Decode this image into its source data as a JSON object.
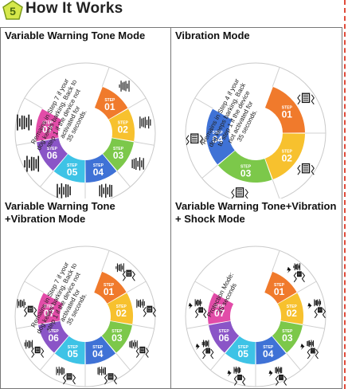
{
  "header": {
    "title": "How It Works",
    "logo_text": "5"
  },
  "colors": {
    "step1": "#f07a2c",
    "step2": "#f7c12e",
    "step3": "#7cc84a",
    "step4": "#3f72d6",
    "step5": "#3ec3e6",
    "step6": "#8a55c7",
    "step7": "#e24ca8"
  },
  "panels": [
    {
      "title": "Variable Warning Tone Mode",
      "note": [
        "Remains in Step 7 if your",
        "dog keeps barking. Back to",
        "step 1 if the device not",
        "activated for",
        "35 seconds."
      ],
      "steps": [
        {
          "label": "STEP",
          "num": "01"
        },
        {
          "label": "STEP",
          "num": "02"
        },
        {
          "label": "STEP",
          "num": "03"
        },
        {
          "label": "STEP",
          "num": "04"
        },
        {
          "label": "STEP",
          "num": "05"
        },
        {
          "label": "STEP",
          "num": "06"
        },
        {
          "label": "STEP",
          "num": "07"
        }
      ]
    },
    {
      "title": "Vibration Mode",
      "note": [
        "Remains in Step 4 if your",
        "dog keeps barking. Back",
        "to step 1 if the device",
        "not activated for",
        "35 seconds."
      ],
      "steps": [
        {
          "label": "STEP",
          "num": "01"
        },
        {
          "label": "STEP",
          "num": "02"
        },
        {
          "label": "STEP",
          "num": "03"
        },
        {
          "label": "STEP",
          "num": "04"
        }
      ]
    },
    {
      "title": "Variable Warning Tone\n+Vibration Mode",
      "note": [
        "Remains in Step 7 if your",
        "dog keeps barking. Back to",
        "step 1 if the device not",
        "activated for",
        "35 seconds."
      ],
      "steps": [
        {
          "label": "STEP",
          "num": "01"
        },
        {
          "label": "STEP",
          "num": "02"
        },
        {
          "label": "STEP",
          "num": "03"
        },
        {
          "label": "STEP",
          "num": "04"
        },
        {
          "label": "STEP",
          "num": "05"
        },
        {
          "label": "STEP",
          "num": "06"
        },
        {
          "label": "STEP",
          "num": "07"
        }
      ]
    },
    {
      "title": "Variable Warning Tone+Vibration\n+ Shock Mode",
      "note": [
        "Protection Mode:",
        "35 seconds"
      ],
      "steps": [
        {
          "label": "STEP",
          "num": "01"
        },
        {
          "label": "STEP",
          "num": "02"
        },
        {
          "label": "STEP",
          "num": "03"
        },
        {
          "label": "STEP",
          "num": "04"
        },
        {
          "label": "STEP",
          "num": "05"
        },
        {
          "label": "STEP",
          "num": "06"
        },
        {
          "label": "STEP",
          "num": "07"
        }
      ]
    }
  ]
}
